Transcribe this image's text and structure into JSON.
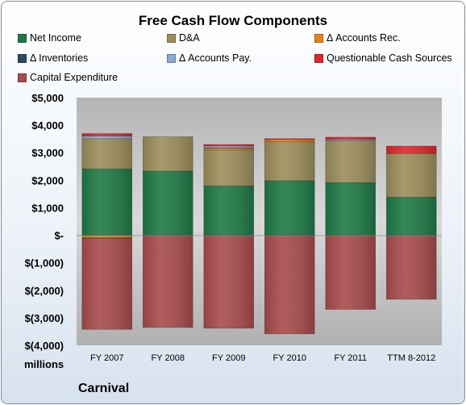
{
  "chart_data": {
    "type": "bar",
    "stacked": true,
    "title": "Free Cash Flow Components",
    "categories": [
      "FY 2007",
      "FY 2008",
      "FY 2009",
      "FY 2010",
      "FY 2011",
      "TTM 8-2012"
    ],
    "series": [
      {
        "name": "Net Income",
        "color": "#1f7a45",
        "values": [
          2408,
          2330,
          1790,
          1978,
          1912,
          1380
        ]
      },
      {
        "name": "D&A",
        "color": "#9c8e5b",
        "values": [
          1101,
          1249,
          1309,
          1416,
          1522,
          1590
        ]
      },
      {
        "name": "Δ Accounts Rec.",
        "color": "#e6821e",
        "values": [
          -95,
          0,
          65,
          85,
          0,
          0
        ]
      },
      {
        "name": "Δ Inventories",
        "color": "#2f4a66",
        "values": [
          -15,
          0,
          10,
          -5,
          0,
          0
        ]
      },
      {
        "name": "Δ Accounts Pay.",
        "color": "#8aa9cf",
        "values": [
          98,
          0,
          70,
          0,
          45,
          0
        ]
      },
      {
        "name": "Questionable Cash Sources",
        "color": "#e0262a",
        "values": [
          88,
          0,
          55,
          30,
          85,
          270
        ]
      },
      {
        "name": "Capital Expenditure",
        "color": "#a84b4b",
        "values": [
          -3312,
          -3353,
          -3380,
          -3579,
          -2696,
          -2330
        ]
      }
    ],
    "y_tick_labels": [
      "$5,000",
      "$4,000",
      "$3,000",
      "$2,000",
      "$1,000",
      "$-",
      "$(1,000)",
      "$(2,000)",
      "$(3,000)",
      "$(4,000)"
    ],
    "ylim": [
      -4000,
      5000
    ],
    "units": "millions",
    "legend_position": "top",
    "grid": false
  },
  "footer": {
    "company": "Carnival"
  }
}
